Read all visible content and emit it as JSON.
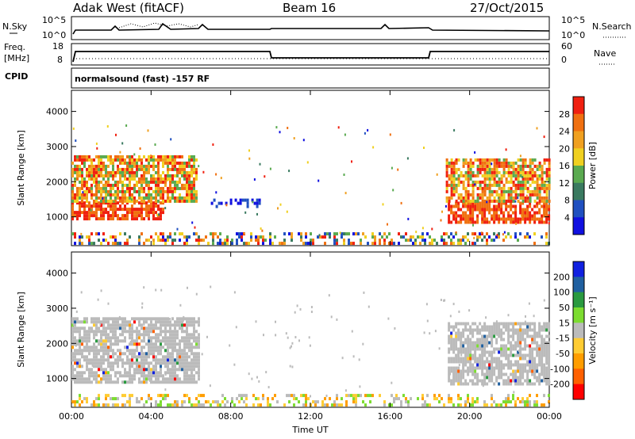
{
  "header": {
    "station": "Adak West (fitACF)",
    "beam": "Beam 16",
    "date": "27/Oct/2015"
  },
  "noise_panel": {
    "left_label": "N.Sky",
    "right_label": "N.Search",
    "left_ticks": [
      "10^5",
      "10^0"
    ],
    "right_ticks": [
      "10^5",
      "10^0"
    ]
  },
  "freq_panel": {
    "left_label_1": "Freq.",
    "left_label_2": "[MHz]",
    "right_label": "Nave",
    "left_ticks": [
      "18",
      "8"
    ],
    "right_ticks": [
      "60",
      "0"
    ]
  },
  "cpid": {
    "label": "CPID",
    "text": "normalsound (fast) -157 RF"
  },
  "colors": {
    "power_scale": [
      "#1010e0",
      "#2050c0",
      "#3a7a60",
      "#5aaa50",
      "#f0d020",
      "#f0a020",
      "#f07010",
      "#f02010"
    ],
    "velocity_scale": [
      "#ff0000",
      "#ff6000",
      "#ff9d00",
      "#ffcc33",
      "#bbbbbb",
      "#7cdc30",
      "#2a9a40",
      "#2060a0",
      "#1020e0"
    ],
    "ground_scatter": "#bbbbbb"
  },
  "chart_data": [
    {
      "type": "heatmap",
      "name": "power",
      "xlabel": "",
      "ylabel": "Slant Range [km]",
      "x_ticks": [
        "00:00",
        "04:00",
        "08:00",
        "12:00",
        "16:00",
        "20:00",
        "00:00"
      ],
      "x_range_hours": [
        0,
        24
      ],
      "y_ticks": [
        1000,
        2000,
        3000,
        4000
      ],
      "ylim": [
        180,
        4600
      ],
      "colorbar": {
        "label": "Power [dB]",
        "ticks": [
          4,
          8,
          12,
          16,
          20,
          24,
          28
        ],
        "range": [
          0,
          32
        ]
      },
      "echo_regions": [
        {
          "t0": 0.0,
          "t1": 4.6,
          "r0": 900,
          "r1": 1400,
          "level": "high"
        },
        {
          "t0": 0.0,
          "t1": 6.3,
          "r0": 1400,
          "r1": 2700,
          "level": "medium"
        },
        {
          "t0": 7.0,
          "t1": 9.5,
          "r0": 1250,
          "r1": 1450,
          "level": "low"
        },
        {
          "t0": 18.9,
          "t1": 24.0,
          "r0": 800,
          "r1": 1400,
          "level": "high"
        },
        {
          "t0": 18.8,
          "t1": 24.0,
          "r0": 1400,
          "r1": 2600,
          "level": "medium"
        },
        {
          "t0": 0.0,
          "t1": 24.0,
          "r0": 200,
          "r1": 500,
          "level": "mixed"
        }
      ]
    },
    {
      "type": "heatmap",
      "name": "velocity",
      "xlabel": "Time UT",
      "ylabel": "Slant Range [km]",
      "x_ticks": [
        "00:00",
        "04:00",
        "08:00",
        "12:00",
        "16:00",
        "20:00",
        "00:00"
      ],
      "x_range_hours": [
        0,
        24
      ],
      "y_ticks": [
        1000,
        2000,
        3000,
        4000
      ],
      "ylim": [
        180,
        4600
      ],
      "colorbar": {
        "label": "Velocity [m s⁻¹]",
        "ticks": [
          200,
          100,
          50,
          15,
          -15,
          -50,
          -100,
          -200
        ],
        "range": [
          -300,
          300
        ]
      },
      "echo_regions": [
        {
          "t0": 0.0,
          "t1": 6.4,
          "r0": 850,
          "r1": 2700,
          "level": "ground"
        },
        {
          "t0": 18.9,
          "t1": 24.0,
          "r0": 800,
          "r1": 2600,
          "level": "ground"
        },
        {
          "t0": 0.0,
          "t1": 24.0,
          "r0": 200,
          "r1": 500,
          "level": "mixed"
        }
      ]
    }
  ]
}
